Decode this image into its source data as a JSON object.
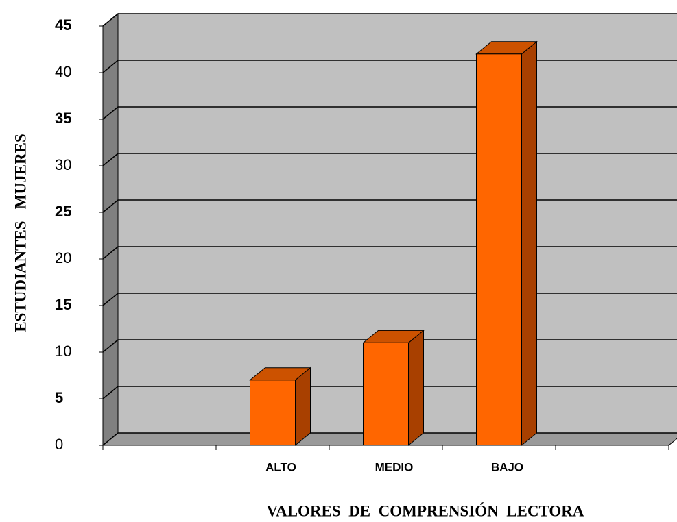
{
  "chart_data": {
    "type": "bar",
    "x_label": "VALORES  DE  COMPRENSIÓN  LECTORA",
    "y_label": "ESTUDIANTES   MUJERES",
    "categories": [
      null,
      "ALTO",
      "MEDIO",
      "BAJO",
      null
    ],
    "values": [
      null,
      7,
      11,
      42,
      null
    ],
    "color": "#ff6600",
    "ylim": [
      0,
      45
    ],
    "yticks": [
      0,
      5,
      10,
      15,
      20,
      25,
      30,
      35,
      40,
      45
    ],
    "grid": true
  }
}
